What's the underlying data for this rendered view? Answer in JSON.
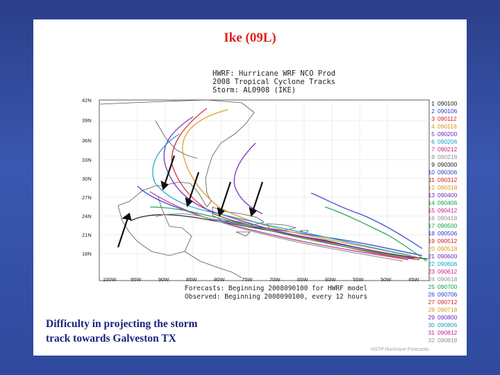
{
  "slide": {
    "title": "Ike (09L)",
    "caption": "Difficulty in projecting the storm\ntrack towards Galveston TX",
    "credit": "NSTP Hurricane Forecasts"
  },
  "figure": {
    "header": [
      "HWRF: Hurricane WRF NCO Prod",
      "2008 Tropical Cyclone Tracks",
      "Storm: AL0908 (IKE)"
    ],
    "footer": [
      "Forecasts: Beginning 2008090100 for HWRF model",
      "Observed: Beginning 2008090100, every 12 hours"
    ],
    "lat_ticks": [
      "42N",
      "39N",
      "36N",
      "33N",
      "30N",
      "27N",
      "24N",
      "21N",
      "18N"
    ],
    "lon_ticks": [
      "100W",
      "95W",
      "90W",
      "85W",
      "80W",
      "75W",
      "70W",
      "65W",
      "60W",
      "55W",
      "50W",
      "45W"
    ],
    "legend": [
      {
        "num": "1",
        "code": "090100",
        "color": "#1a1a1a"
      },
      {
        "num": "2",
        "code": "090106",
        "color": "#2a3ad0"
      },
      {
        "num": "3",
        "code": "090112",
        "color": "#d02020"
      },
      {
        "num": "4",
        "code": "090118",
        "color": "#e09010"
      },
      {
        "num": "5",
        "code": "090200",
        "color": "#7020c0"
      },
      {
        "num": "6",
        "code": "090206",
        "color": "#10a0c0"
      },
      {
        "num": "7",
        "code": "090212",
        "color": "#c02090"
      },
      {
        "num": "8",
        "code": "090218",
        "color": "#909090"
      },
      {
        "num": "9",
        "code": "090300",
        "color": "#1a1a1a"
      },
      {
        "num": "10",
        "code": "090306",
        "color": "#2a3ad0"
      },
      {
        "num": "11",
        "code": "090312",
        "color": "#d02020"
      },
      {
        "num": "12",
        "code": "090318",
        "color": "#e09010"
      },
      {
        "num": "13",
        "code": "090400",
        "color": "#7020c0"
      },
      {
        "num": "14",
        "code": "090406",
        "color": "#10a040"
      },
      {
        "num": "15",
        "code": "090412",
        "color": "#c02090"
      },
      {
        "num": "16",
        "code": "090418",
        "color": "#909090"
      },
      {
        "num": "17",
        "code": "090500",
        "color": "#10a040"
      },
      {
        "num": "18",
        "code": "090506",
        "color": "#2a3ad0"
      },
      {
        "num": "19",
        "code": "090512",
        "color": "#d02020"
      },
      {
        "num": "20",
        "code": "090518",
        "color": "#e09010"
      },
      {
        "num": "21",
        "code": "090600",
        "color": "#7020c0"
      },
      {
        "num": "22",
        "code": "090606",
        "color": "#10a0c0"
      },
      {
        "num": "23",
        "code": "090612",
        "color": "#c02090"
      },
      {
        "num": "24",
        "code": "090618",
        "color": "#909090"
      },
      {
        "num": "25",
        "code": "090700",
        "color": "#10a040"
      },
      {
        "num": "26",
        "code": "090706",
        "color": "#2a3ad0"
      },
      {
        "num": "27",
        "code": "090712",
        "color": "#d02020"
      },
      {
        "num": "28",
        "code": "090718",
        "color": "#e09010"
      },
      {
        "num": "29",
        "code": "090800",
        "color": "#7020c0"
      },
      {
        "num": "30",
        "code": "090806",
        "color": "#10a0c0"
      },
      {
        "num": "31",
        "code": "090812",
        "color": "#c02090"
      },
      {
        "num": "32",
        "code": "090818",
        "color": "#909090"
      }
    ]
  }
}
